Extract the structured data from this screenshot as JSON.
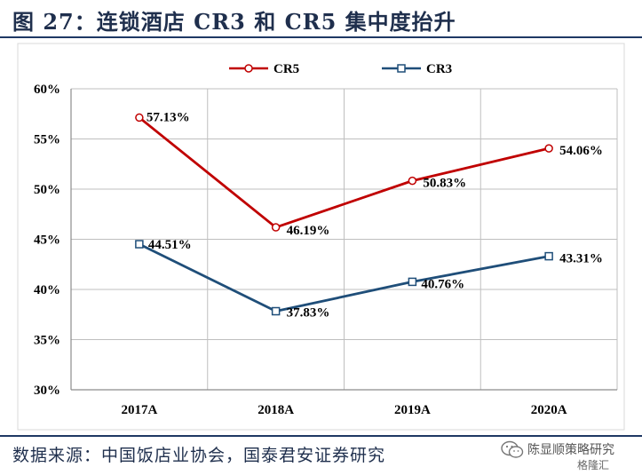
{
  "title": "图 27：连锁酒店 CR3 和 CR5 集中度抬升",
  "source": "数据来源：中国饭店业协会，国泰君安证券研究",
  "watermark": {
    "name": "陈显顺策略研究",
    "site": "格隆汇",
    "logo_icon": "wechat-logo-icon"
  },
  "colors": {
    "cr5": "#c00000",
    "cr3": "#1f4e79",
    "text": "#1f2f4d",
    "grid": "#bfbfbf"
  },
  "chart_data": {
    "type": "line",
    "categories": [
      "2017A",
      "2018A",
      "2019A",
      "2020A"
    ],
    "series": [
      {
        "name": "CR5",
        "values": [
          57.13,
          46.19,
          50.83,
          54.06
        ],
        "labels": [
          "57.13%",
          "46.19%",
          "50.83%",
          "54.06%"
        ],
        "marker": "circle"
      },
      {
        "name": "CR3",
        "values": [
          44.51,
          37.83,
          40.76,
          43.31
        ],
        "labels": [
          "44.51%",
          "37.83%",
          "40.76%",
          "43.31%"
        ],
        "marker": "square"
      }
    ],
    "ylim": [
      30,
      60
    ],
    "yticks": [
      "30%",
      "35%",
      "40%",
      "45%",
      "50%",
      "55%",
      "60%"
    ],
    "grid": true,
    "legend": "top-center",
    "xlabel": "",
    "ylabel": ""
  }
}
